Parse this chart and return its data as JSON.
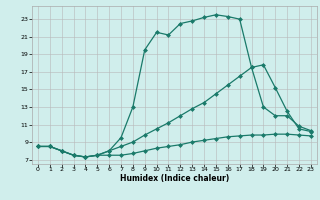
{
  "xlabel": "Humidex (Indice chaleur)",
  "bg_color": "#d0eeec",
  "line_color": "#1a7a6a",
  "grid_color": "#b8b8b8",
  "xlim": [
    -0.5,
    23.5
  ],
  "ylim": [
    6.5,
    24.5
  ],
  "yticks": [
    7,
    9,
    11,
    13,
    15,
    17,
    19,
    21,
    23
  ],
  "xticks": [
    0,
    1,
    2,
    3,
    4,
    5,
    6,
    7,
    8,
    9,
    10,
    11,
    12,
    13,
    14,
    15,
    16,
    17,
    18,
    19,
    20,
    21,
    22,
    23
  ],
  "line1_x": [
    0,
    1,
    2,
    3,
    4,
    5,
    6,
    7,
    8,
    9,
    10,
    11,
    12,
    13,
    14,
    15,
    16,
    17,
    18,
    19,
    20,
    21,
    22,
    23
  ],
  "line1_y": [
    8.5,
    8.5,
    8.0,
    7.5,
    7.3,
    7.5,
    7.5,
    7.5,
    7.7,
    8.0,
    8.3,
    8.5,
    8.7,
    9.0,
    9.2,
    9.4,
    9.6,
    9.7,
    9.8,
    9.8,
    9.9,
    9.9,
    9.8,
    9.7
  ],
  "line2_x": [
    0,
    1,
    2,
    3,
    4,
    5,
    6,
    7,
    8,
    9,
    10,
    11,
    12,
    13,
    14,
    15,
    16,
    17,
    18,
    19,
    20,
    21,
    22,
    23
  ],
  "line2_y": [
    8.5,
    8.5,
    8.0,
    7.5,
    7.3,
    7.5,
    8.0,
    8.5,
    9.0,
    9.8,
    10.5,
    11.2,
    12.0,
    12.8,
    13.5,
    14.5,
    15.5,
    16.5,
    17.5,
    17.8,
    15.2,
    12.5,
    10.5,
    10.2
  ],
  "line3_x": [
    0,
    1,
    2,
    3,
    4,
    5,
    6,
    7,
    8,
    9,
    10,
    11,
    12,
    13,
    14,
    15,
    16,
    17,
    18,
    19,
    20,
    21,
    22,
    23
  ],
  "line3_y": [
    8.5,
    8.5,
    8.0,
    7.5,
    7.3,
    7.5,
    8.0,
    9.5,
    13.0,
    19.5,
    21.5,
    21.2,
    22.5,
    22.8,
    23.2,
    23.5,
    23.3,
    23.0,
    17.5,
    13.0,
    12.0,
    12.0,
    10.8,
    10.3
  ]
}
